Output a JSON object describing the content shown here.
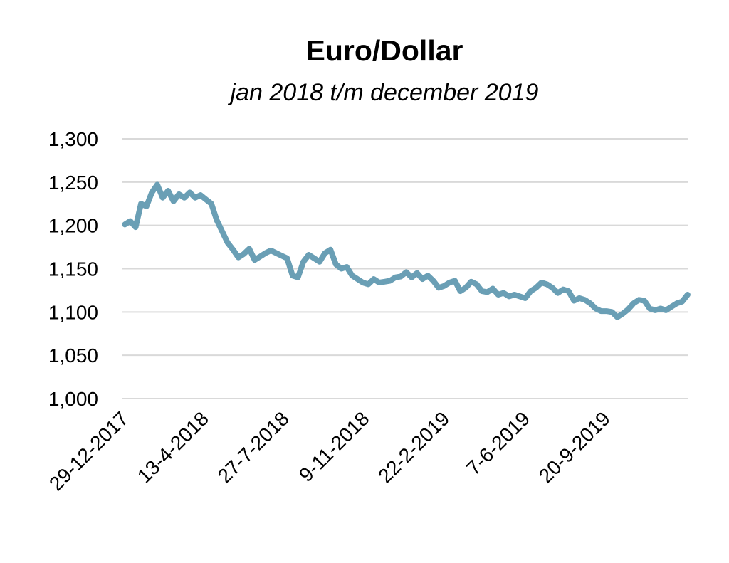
{
  "chart_data": {
    "type": "line",
    "title": "Euro/Dollar",
    "subtitle": "jan 2018 t/m december 2019",
    "xlabel": "",
    "ylabel": "",
    "ylim": [
      1.0,
      1.3
    ],
    "y_ticks": [
      "1,000",
      "1,050",
      "1,100",
      "1,150",
      "1,200",
      "1,250",
      "1,300"
    ],
    "x_ticks": [
      "29-12-2017",
      "13-4-2018",
      "27-7-2018",
      "9-11-2018",
      "22-2-2019",
      "7-6-2019",
      "20-9-2019"
    ],
    "grid": true,
    "legend": "none",
    "colors": {
      "line": "#6A9FB5",
      "grid": "#D9D9D9"
    },
    "series": [
      {
        "x": [
          "2018-01-01",
          "2018-01-08",
          "2018-01-15",
          "2018-01-22",
          "2018-01-29",
          "2018-02-05",
          "2018-02-12",
          "2018-02-19",
          "2018-02-26",
          "2018-03-05",
          "2018-03-12",
          "2018-03-19",
          "2018-03-26",
          "2018-04-02",
          "2018-04-09",
          "2018-04-16",
          "2018-04-23",
          "2018-04-30",
          "2018-05-07",
          "2018-05-14",
          "2018-05-21",
          "2018-05-28",
          "2018-06-04",
          "2018-06-11",
          "2018-06-18",
          "2018-06-25",
          "2018-07-02",
          "2018-07-09",
          "2018-07-16",
          "2018-07-23",
          "2018-07-30",
          "2018-08-06",
          "2018-08-13",
          "2018-08-20",
          "2018-08-27",
          "2018-09-03",
          "2018-09-10",
          "2018-09-17",
          "2018-09-24",
          "2018-10-01",
          "2018-10-08",
          "2018-10-15",
          "2018-10-22",
          "2018-10-29",
          "2018-11-05",
          "2018-11-12",
          "2018-11-19",
          "2018-11-26",
          "2018-12-03",
          "2018-12-10",
          "2018-12-17",
          "2018-12-24",
          "2018-12-31",
          "2019-01-07",
          "2019-01-14",
          "2019-01-21",
          "2019-01-28",
          "2019-02-04",
          "2019-02-11",
          "2019-02-18",
          "2019-02-25",
          "2019-03-04",
          "2019-03-11",
          "2019-03-18",
          "2019-03-25",
          "2019-04-01",
          "2019-04-08",
          "2019-04-15",
          "2019-04-22",
          "2019-04-29",
          "2019-05-06",
          "2019-05-13",
          "2019-05-20",
          "2019-05-27",
          "2019-06-03",
          "2019-06-10",
          "2019-06-17",
          "2019-06-24",
          "2019-07-01",
          "2019-07-08",
          "2019-07-15",
          "2019-07-22",
          "2019-07-29",
          "2019-08-05",
          "2019-08-12",
          "2019-08-19",
          "2019-08-26",
          "2019-09-02",
          "2019-09-09",
          "2019-09-16",
          "2019-09-23",
          "2019-09-30",
          "2019-10-07",
          "2019-10-14",
          "2019-10-21",
          "2019-10-28",
          "2019-11-04",
          "2019-11-11",
          "2019-11-18",
          "2019-11-25",
          "2019-12-02",
          "2019-12-09",
          "2019-12-16",
          "2019-12-23",
          "2019-12-30"
        ],
        "values": [
          1.201,
          1.205,
          1.198,
          1.225,
          1.222,
          1.238,
          1.247,
          1.232,
          1.24,
          1.228,
          1.236,
          1.232,
          1.238,
          1.232,
          1.235,
          1.23,
          1.225,
          1.206,
          1.193,
          1.18,
          1.172,
          1.163,
          1.167,
          1.173,
          1.16,
          1.164,
          1.168,
          1.171,
          1.168,
          1.165,
          1.162,
          1.142,
          1.14,
          1.158,
          1.166,
          1.162,
          1.158,
          1.168,
          1.172,
          1.155,
          1.15,
          1.152,
          1.142,
          1.138,
          1.134,
          1.132,
          1.138,
          1.134,
          1.135,
          1.136,
          1.14,
          1.141,
          1.146,
          1.14,
          1.145,
          1.138,
          1.142,
          1.136,
          1.128,
          1.13,
          1.134,
          1.136,
          1.124,
          1.128,
          1.135,
          1.132,
          1.124,
          1.123,
          1.127,
          1.12,
          1.122,
          1.118,
          1.12,
          1.118,
          1.116,
          1.124,
          1.128,
          1.134,
          1.132,
          1.128,
          1.122,
          1.126,
          1.124,
          1.113,
          1.116,
          1.114,
          1.11,
          1.104,
          1.101,
          1.101,
          1.1,
          1.094,
          1.098,
          1.103,
          1.11,
          1.114,
          1.113,
          1.104,
          1.102,
          1.104,
          1.102,
          1.106,
          1.11,
          1.112,
          1.12
        ]
      }
    ]
  }
}
